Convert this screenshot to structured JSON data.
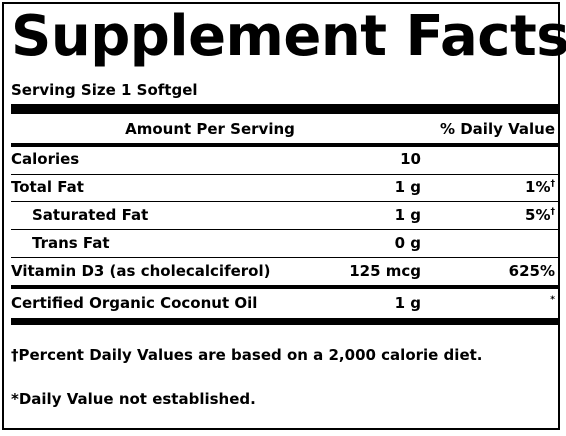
{
  "title": "Supplement Facts",
  "serving_size": "Serving Size 1 Softgel",
  "headers": {
    "amount": "Amount Per Serving",
    "daily_value": "% Daily Value"
  },
  "rows": [
    {
      "name": "Calories",
      "amount": "10",
      "dv": "",
      "dv_mark": ""
    },
    {
      "name": "Total Fat",
      "amount": "1 g",
      "dv": "1%",
      "dv_mark": "†"
    },
    {
      "name": "Saturated Fat",
      "amount": "1 g",
      "dv": "5%",
      "dv_mark": "†"
    },
    {
      "name": "Trans Fat",
      "amount": "0 g",
      "dv": "",
      "dv_mark": ""
    },
    {
      "name": "Vitamin D3 (as cholecalciferol)",
      "amount": "125 mcg",
      "dv": "625%",
      "dv_mark": ""
    },
    {
      "name": "Certified Organic Coconut Oil",
      "amount": "1 g",
      "dv": "",
      "dv_mark": "*"
    }
  ],
  "footnotes": {
    "percent_dv_mark": "†",
    "percent_dv": "Percent Daily Values are based on a 2,000 calorie diet.",
    "not_established": "*Daily Value not established."
  }
}
